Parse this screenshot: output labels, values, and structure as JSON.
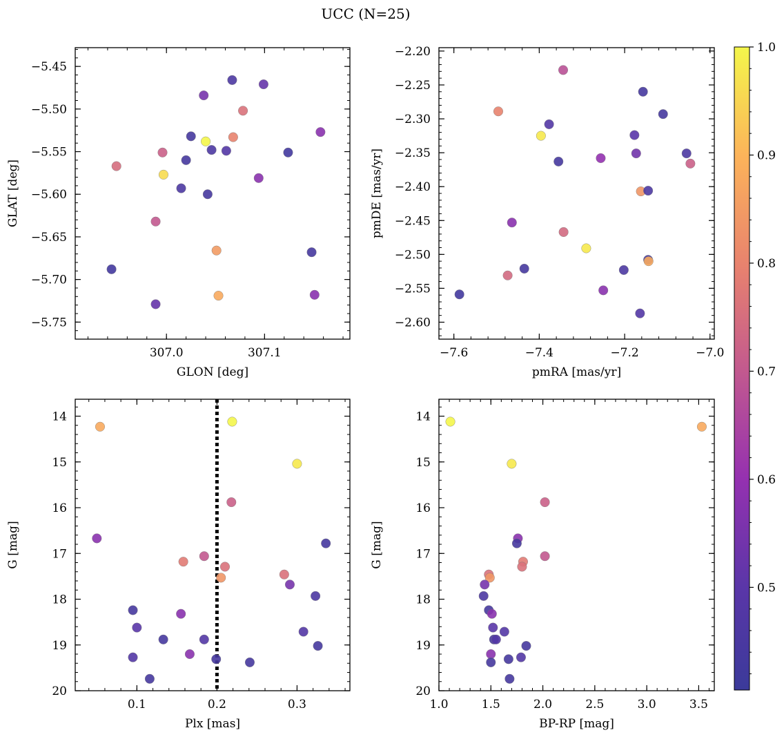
{
  "figure": {
    "title": "UCC (N=25)"
  },
  "colorbar": {
    "colormap": "plasma",
    "min": 0.405,
    "max": 1.0,
    "tick_labels": [
      "0.5",
      "0.6",
      "0.7",
      "0.8",
      "0.9",
      "1.0"
    ],
    "tick_values": [
      0.5,
      0.6,
      0.7,
      0.8,
      0.9,
      1.0
    ]
  },
  "chart_data": [
    {
      "type": "scatter",
      "name": "glon-glat",
      "xlabel": "GLON [deg]",
      "ylabel": "GLAT [deg]",
      "xlim": [
        306.907,
        307.187
      ],
      "ylim": [
        -5.77,
        -5.428
      ],
      "y_inverted": false,
      "x_ticks": [
        307.0,
        307.1
      ],
      "x_tick_labels": [
        "307.0",
        "307.1"
      ],
      "y_ticks": [
        -5.45,
        -5.5,
        -5.55,
        -5.6,
        -5.65,
        -5.7,
        -5.75
      ],
      "y_tick_labels": [
        "−5.45",
        "−5.50",
        "−5.55",
        "−5.60",
        "−5.65",
        "−5.70",
        "−5.75"
      ],
      "points": [
        {
          "x": 306.944,
          "y": -5.688,
          "c": 0.43
        },
        {
          "x": 306.949,
          "y": -5.567,
          "c": 0.75
        },
        {
          "x": 306.989,
          "y": -5.632,
          "c": 0.7
        },
        {
          "x": 306.989,
          "y": -5.729,
          "c": 0.52
        },
        {
          "x": 306.996,
          "y": -5.551,
          "c": 0.72
        },
        {
          "x": 306.997,
          "y": -5.577,
          "c": 0.96
        },
        {
          "x": 307.015,
          "y": -5.593,
          "c": 0.46
        },
        {
          "x": 307.02,
          "y": -5.56,
          "c": 0.44
        },
        {
          "x": 307.025,
          "y": -5.532,
          "c": 0.44
        },
        {
          "x": 307.038,
          "y": -5.484,
          "c": 0.55
        },
        {
          "x": 307.04,
          "y": -5.538,
          "c": 1.0
        },
        {
          "x": 307.042,
          "y": -5.6,
          "c": 0.44
        },
        {
          "x": 307.046,
          "y": -5.548,
          "c": 0.46
        },
        {
          "x": 307.051,
          "y": -5.666,
          "c": 0.85
        },
        {
          "x": 307.053,
          "y": -5.719,
          "c": 0.88
        },
        {
          "x": 307.061,
          "y": -5.549,
          "c": 0.48
        },
        {
          "x": 307.067,
          "y": -5.466,
          "c": 0.46
        },
        {
          "x": 307.068,
          "y": -5.533,
          "c": 0.8
        },
        {
          "x": 307.078,
          "y": -5.502,
          "c": 0.76
        },
        {
          "x": 307.094,
          "y": -5.581,
          "c": 0.58
        },
        {
          "x": 307.099,
          "y": -5.471,
          "c": 0.52
        },
        {
          "x": 307.124,
          "y": -5.551,
          "c": 0.43
        },
        {
          "x": 307.148,
          "y": -5.668,
          "c": 0.44
        },
        {
          "x": 307.151,
          "y": -5.718,
          "c": 0.58
        },
        {
          "x": 307.157,
          "y": -5.527,
          "c": 0.58
        }
      ]
    },
    {
      "type": "scatter",
      "name": "pm",
      "xlabel": "pmRA [mas/yr]",
      "ylabel": "pmDE [mas/yr]",
      "xlim": [
        -7.635,
        -6.99
      ],
      "ylim": [
        -2.625,
        -2.195
      ],
      "y_inverted": false,
      "x_ticks": [
        -7.6,
        -7.4,
        -7.2,
        -7.0
      ],
      "x_tick_labels": [
        "−7.6",
        "−7.4",
        "−7.2",
        "−7.0"
      ],
      "y_ticks": [
        -2.2,
        -2.25,
        -2.3,
        -2.35,
        -2.4,
        -2.45,
        -2.5,
        -2.55,
        -2.6
      ],
      "y_tick_labels": [
        "−2.20",
        "−2.25",
        "−2.30",
        "−2.35",
        "−2.40",
        "−2.45",
        "−2.50",
        "−2.55",
        "−2.60"
      ],
      "points": [
        {
          "x": -7.587,
          "y": -2.559,
          "c": 0.43
        },
        {
          "x": -7.496,
          "y": -2.289,
          "c": 0.8
        },
        {
          "x": -7.474,
          "y": -2.531,
          "c": 0.74
        },
        {
          "x": -7.464,
          "y": -2.453,
          "c": 0.58
        },
        {
          "x": -7.435,
          "y": -2.521,
          "c": 0.44
        },
        {
          "x": -7.396,
          "y": -2.325,
          "c": 0.98
        },
        {
          "x": -7.377,
          "y": -2.308,
          "c": 0.48
        },
        {
          "x": -7.355,
          "y": -2.363,
          "c": 0.44
        },
        {
          "x": -7.344,
          "y": -2.228,
          "c": 0.68
        },
        {
          "x": -7.343,
          "y": -2.467,
          "c": 0.74
        },
        {
          "x": -7.29,
          "y": -2.491,
          "c": 0.98
        },
        {
          "x": -7.256,
          "y": -2.358,
          "c": 0.6
        },
        {
          "x": -7.25,
          "y": -2.553,
          "c": 0.58
        },
        {
          "x": -7.202,
          "y": -2.523,
          "c": 0.46
        },
        {
          "x": -7.177,
          "y": -2.324,
          "c": 0.5
        },
        {
          "x": -7.173,
          "y": -2.351,
          "c": 0.54
        },
        {
          "x": -7.164,
          "y": -2.587,
          "c": 0.48
        },
        {
          "x": -7.162,
          "y": -2.407,
          "c": 0.84
        },
        {
          "x": -7.157,
          "y": -2.26,
          "c": 0.44
        },
        {
          "x": -7.145,
          "y": -2.406,
          "c": 0.46
        },
        {
          "x": -7.145,
          "y": -2.508,
          "c": 0.44
        },
        {
          "x": -7.144,
          "y": -2.51,
          "c": 0.88
        },
        {
          "x": -7.11,
          "y": -2.293,
          "c": 0.44
        },
        {
          "x": -7.055,
          "y": -2.351,
          "c": 0.46
        },
        {
          "x": -7.046,
          "y": -2.366,
          "c": 0.72
        }
      ]
    },
    {
      "type": "scatter",
      "name": "plx-g",
      "xlabel": "Plx [mas]",
      "ylabel": "G [mag]",
      "xlim": [
        0.023,
        0.366
      ],
      "ylim": [
        13.63,
        20.0
      ],
      "y_inverted": true,
      "vline": {
        "x": 0.2,
        "style": "dotted"
      },
      "x_ticks": [
        0.1,
        0.2,
        0.3
      ],
      "x_tick_labels": [
        "0.1",
        "0.2",
        "0.3"
      ],
      "y_ticks": [
        14,
        15,
        16,
        17,
        18,
        19,
        20
      ],
      "y_tick_labels": [
        "14",
        "15",
        "16",
        "17",
        "18",
        "19",
        "20"
      ],
      "points": [
        {
          "x": 0.054,
          "y": 14.23,
          "c": 0.88
        },
        {
          "x": 0.219,
          "y": 14.12,
          "c": 1.0
        },
        {
          "x": 0.3,
          "y": 15.04,
          "c": 0.98
        },
        {
          "x": 0.218,
          "y": 15.88,
          "c": 0.72
        },
        {
          "x": 0.05,
          "y": 16.67,
          "c": 0.58
        },
        {
          "x": 0.336,
          "y": 16.78,
          "c": 0.44
        },
        {
          "x": 0.184,
          "y": 17.06,
          "c": 0.7
        },
        {
          "x": 0.158,
          "y": 17.18,
          "c": 0.78
        },
        {
          "x": 0.21,
          "y": 17.29,
          "c": 0.76
        },
        {
          "x": 0.205,
          "y": 17.53,
          "c": 0.84
        },
        {
          "x": 0.284,
          "y": 17.46,
          "c": 0.76
        },
        {
          "x": 0.291,
          "y": 17.68,
          "c": 0.55
        },
        {
          "x": 0.323,
          "y": 17.93,
          "c": 0.46
        },
        {
          "x": 0.095,
          "y": 18.24,
          "c": 0.44
        },
        {
          "x": 0.155,
          "y": 18.32,
          "c": 0.58
        },
        {
          "x": 0.1,
          "y": 18.62,
          "c": 0.5
        },
        {
          "x": 0.308,
          "y": 18.71,
          "c": 0.48
        },
        {
          "x": 0.133,
          "y": 18.88,
          "c": 0.44
        },
        {
          "x": 0.184,
          "y": 18.88,
          "c": 0.48
        },
        {
          "x": 0.326,
          "y": 19.02,
          "c": 0.44
        },
        {
          "x": 0.166,
          "y": 19.2,
          "c": 0.58
        },
        {
          "x": 0.095,
          "y": 19.27,
          "c": 0.48
        },
        {
          "x": 0.199,
          "y": 19.31,
          "c": 0.44
        },
        {
          "x": 0.241,
          "y": 19.38,
          "c": 0.44
        },
        {
          "x": 0.116,
          "y": 19.74,
          "c": 0.44
        }
      ]
    },
    {
      "type": "scatter",
      "name": "cmd",
      "xlabel": "BP-RP [mag]",
      "ylabel": "G [mag]",
      "xlim": [
        1.0,
        3.65
      ],
      "ylim": [
        13.63,
        20.0
      ],
      "y_inverted": true,
      "x_ticks": [
        1.0,
        1.5,
        2.0,
        2.5,
        3.0,
        3.5
      ],
      "x_tick_labels": [
        "1.0",
        "1.5",
        "2.0",
        "2.5",
        "3.0",
        "3.5"
      ],
      "y_ticks": [
        14,
        15,
        16,
        17,
        18,
        19,
        20
      ],
      "y_tick_labels": [
        "14",
        "15",
        "16",
        "17",
        "18",
        "19",
        "20"
      ],
      "points": [
        {
          "x": 1.11,
          "y": 14.12,
          "c": 1.0
        },
        {
          "x": 3.53,
          "y": 14.23,
          "c": 0.88
        },
        {
          "x": 1.7,
          "y": 15.04,
          "c": 0.98
        },
        {
          "x": 2.02,
          "y": 15.88,
          "c": 0.72
        },
        {
          "x": 1.76,
          "y": 16.67,
          "c": 0.58
        },
        {
          "x": 1.75,
          "y": 16.78,
          "c": 0.44
        },
        {
          "x": 2.02,
          "y": 17.06,
          "c": 0.7
        },
        {
          "x": 1.81,
          "y": 17.18,
          "c": 0.78
        },
        {
          "x": 1.8,
          "y": 17.29,
          "c": 0.76
        },
        {
          "x": 1.48,
          "y": 17.46,
          "c": 0.76
        },
        {
          "x": 1.49,
          "y": 17.53,
          "c": 0.84
        },
        {
          "x": 1.44,
          "y": 17.68,
          "c": 0.55
        },
        {
          "x": 1.43,
          "y": 17.93,
          "c": 0.46
        },
        {
          "x": 1.48,
          "y": 18.24,
          "c": 0.44
        },
        {
          "x": 1.51,
          "y": 18.32,
          "c": 0.58
        },
        {
          "x": 1.52,
          "y": 18.62,
          "c": 0.5
        },
        {
          "x": 1.63,
          "y": 18.71,
          "c": 0.48
        },
        {
          "x": 1.53,
          "y": 18.88,
          "c": 0.44
        },
        {
          "x": 1.55,
          "y": 18.88,
          "c": 0.48
        },
        {
          "x": 1.84,
          "y": 19.02,
          "c": 0.44
        },
        {
          "x": 1.5,
          "y": 19.2,
          "c": 0.58
        },
        {
          "x": 1.79,
          "y": 19.27,
          "c": 0.48
        },
        {
          "x": 1.67,
          "y": 19.31,
          "c": 0.44
        },
        {
          "x": 1.5,
          "y": 19.38,
          "c": 0.44
        },
        {
          "x": 1.68,
          "y": 19.74,
          "c": 0.44
        }
      ]
    }
  ]
}
